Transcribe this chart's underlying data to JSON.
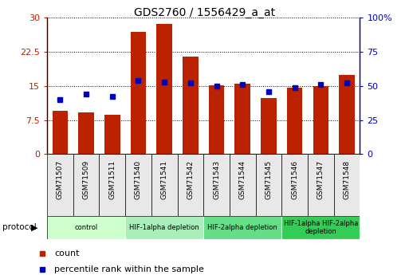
{
  "title": "GDS2760 / 1556429_a_at",
  "samples": [
    "GSM71507",
    "GSM71509",
    "GSM71511",
    "GSM71540",
    "GSM71541",
    "GSM71542",
    "GSM71543",
    "GSM71544",
    "GSM71545",
    "GSM71546",
    "GSM71547",
    "GSM71548"
  ],
  "counts": [
    9.5,
    9.2,
    8.7,
    27.0,
    28.7,
    21.5,
    15.2,
    15.5,
    12.3,
    14.7,
    15.0,
    17.5
  ],
  "percentiles": [
    40,
    44,
    42,
    54,
    53,
    52,
    50,
    51,
    46,
    49,
    51,
    52
  ],
  "ylim_left": [
    0,
    30
  ],
  "ylim_right": [
    0,
    100
  ],
  "yticks_left": [
    0,
    7.5,
    15,
    22.5,
    30
  ],
  "yticks_right": [
    0,
    25,
    50,
    75,
    100
  ],
  "ytick_labels_left": [
    "0",
    "7.5",
    "15",
    "22.5",
    "30"
  ],
  "ytick_labels_right": [
    "0",
    "25",
    "50",
    "75",
    "100%"
  ],
  "bar_color": "#bb2200",
  "dot_color": "#0000bb",
  "protocol_groups": [
    {
      "label": "control",
      "start": 0,
      "end": 2,
      "color": "#ccffcc"
    },
    {
      "label": "HIF-1alpha depletion",
      "start": 3,
      "end": 5,
      "color": "#aaeebb"
    },
    {
      "label": "HIF-2alpha depletion",
      "start": 6,
      "end": 8,
      "color": "#66dd88"
    },
    {
      "label": "HIF-1alpha HIF-2alpha\ndepletion",
      "start": 9,
      "end": 11,
      "color": "#33cc55"
    }
  ],
  "legend_count_label": "count",
  "legend_pct_label": "percentile rank within the sample",
  "right_ytick_labels": [
    "0",
    "25",
    "50",
    "75",
    "100%"
  ]
}
